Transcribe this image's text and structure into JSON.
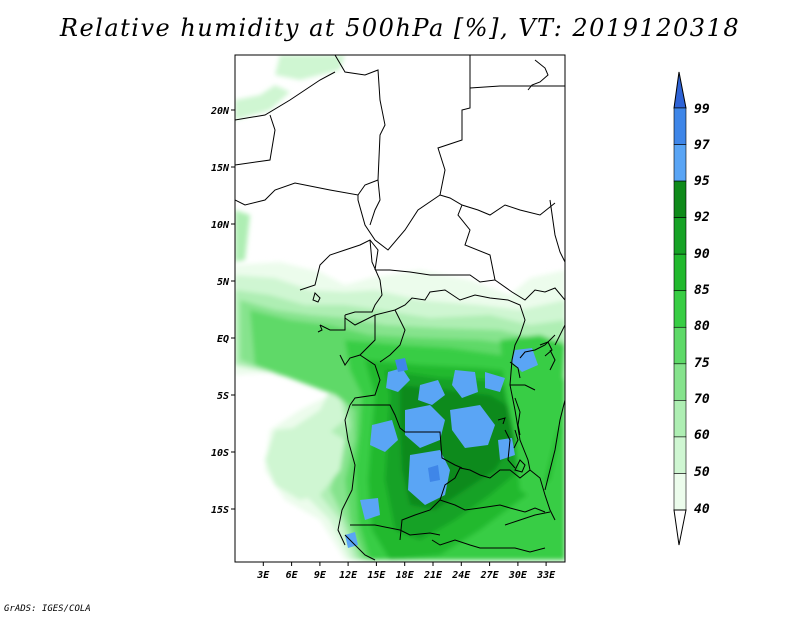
{
  "title": "Relative humidity at 500hPa [%], VT: 2019120318",
  "credit": "GrADS: IGES/COLA",
  "map": {
    "lon_labels": [
      "3E",
      "6E",
      "9E",
      "12E",
      "15E",
      "18E",
      "21E",
      "24E",
      "27E",
      "30E",
      "33E"
    ],
    "lat_labels": [
      "20N",
      "15N",
      "10N",
      "5N",
      "EQ",
      "5S",
      "10S",
      "15S"
    ],
    "lon_range": [
      0,
      35
    ],
    "lat_range": [
      -19.5,
      24.5
    ]
  },
  "colorbar": {
    "levels": [
      "99",
      "97",
      "95",
      "92",
      "90",
      "85",
      "80",
      "75",
      "70",
      "60",
      "50",
      "40"
    ],
    "colors": [
      "#2e63d6",
      "#3f86e8",
      "#5aa5f5",
      "#0f8a1a",
      "#16a225",
      "#21b92e",
      "#38cd44",
      "#5ed968",
      "#86e38d",
      "#aeeeb3",
      "#cff6d2",
      "#ecfcec"
    ]
  }
}
